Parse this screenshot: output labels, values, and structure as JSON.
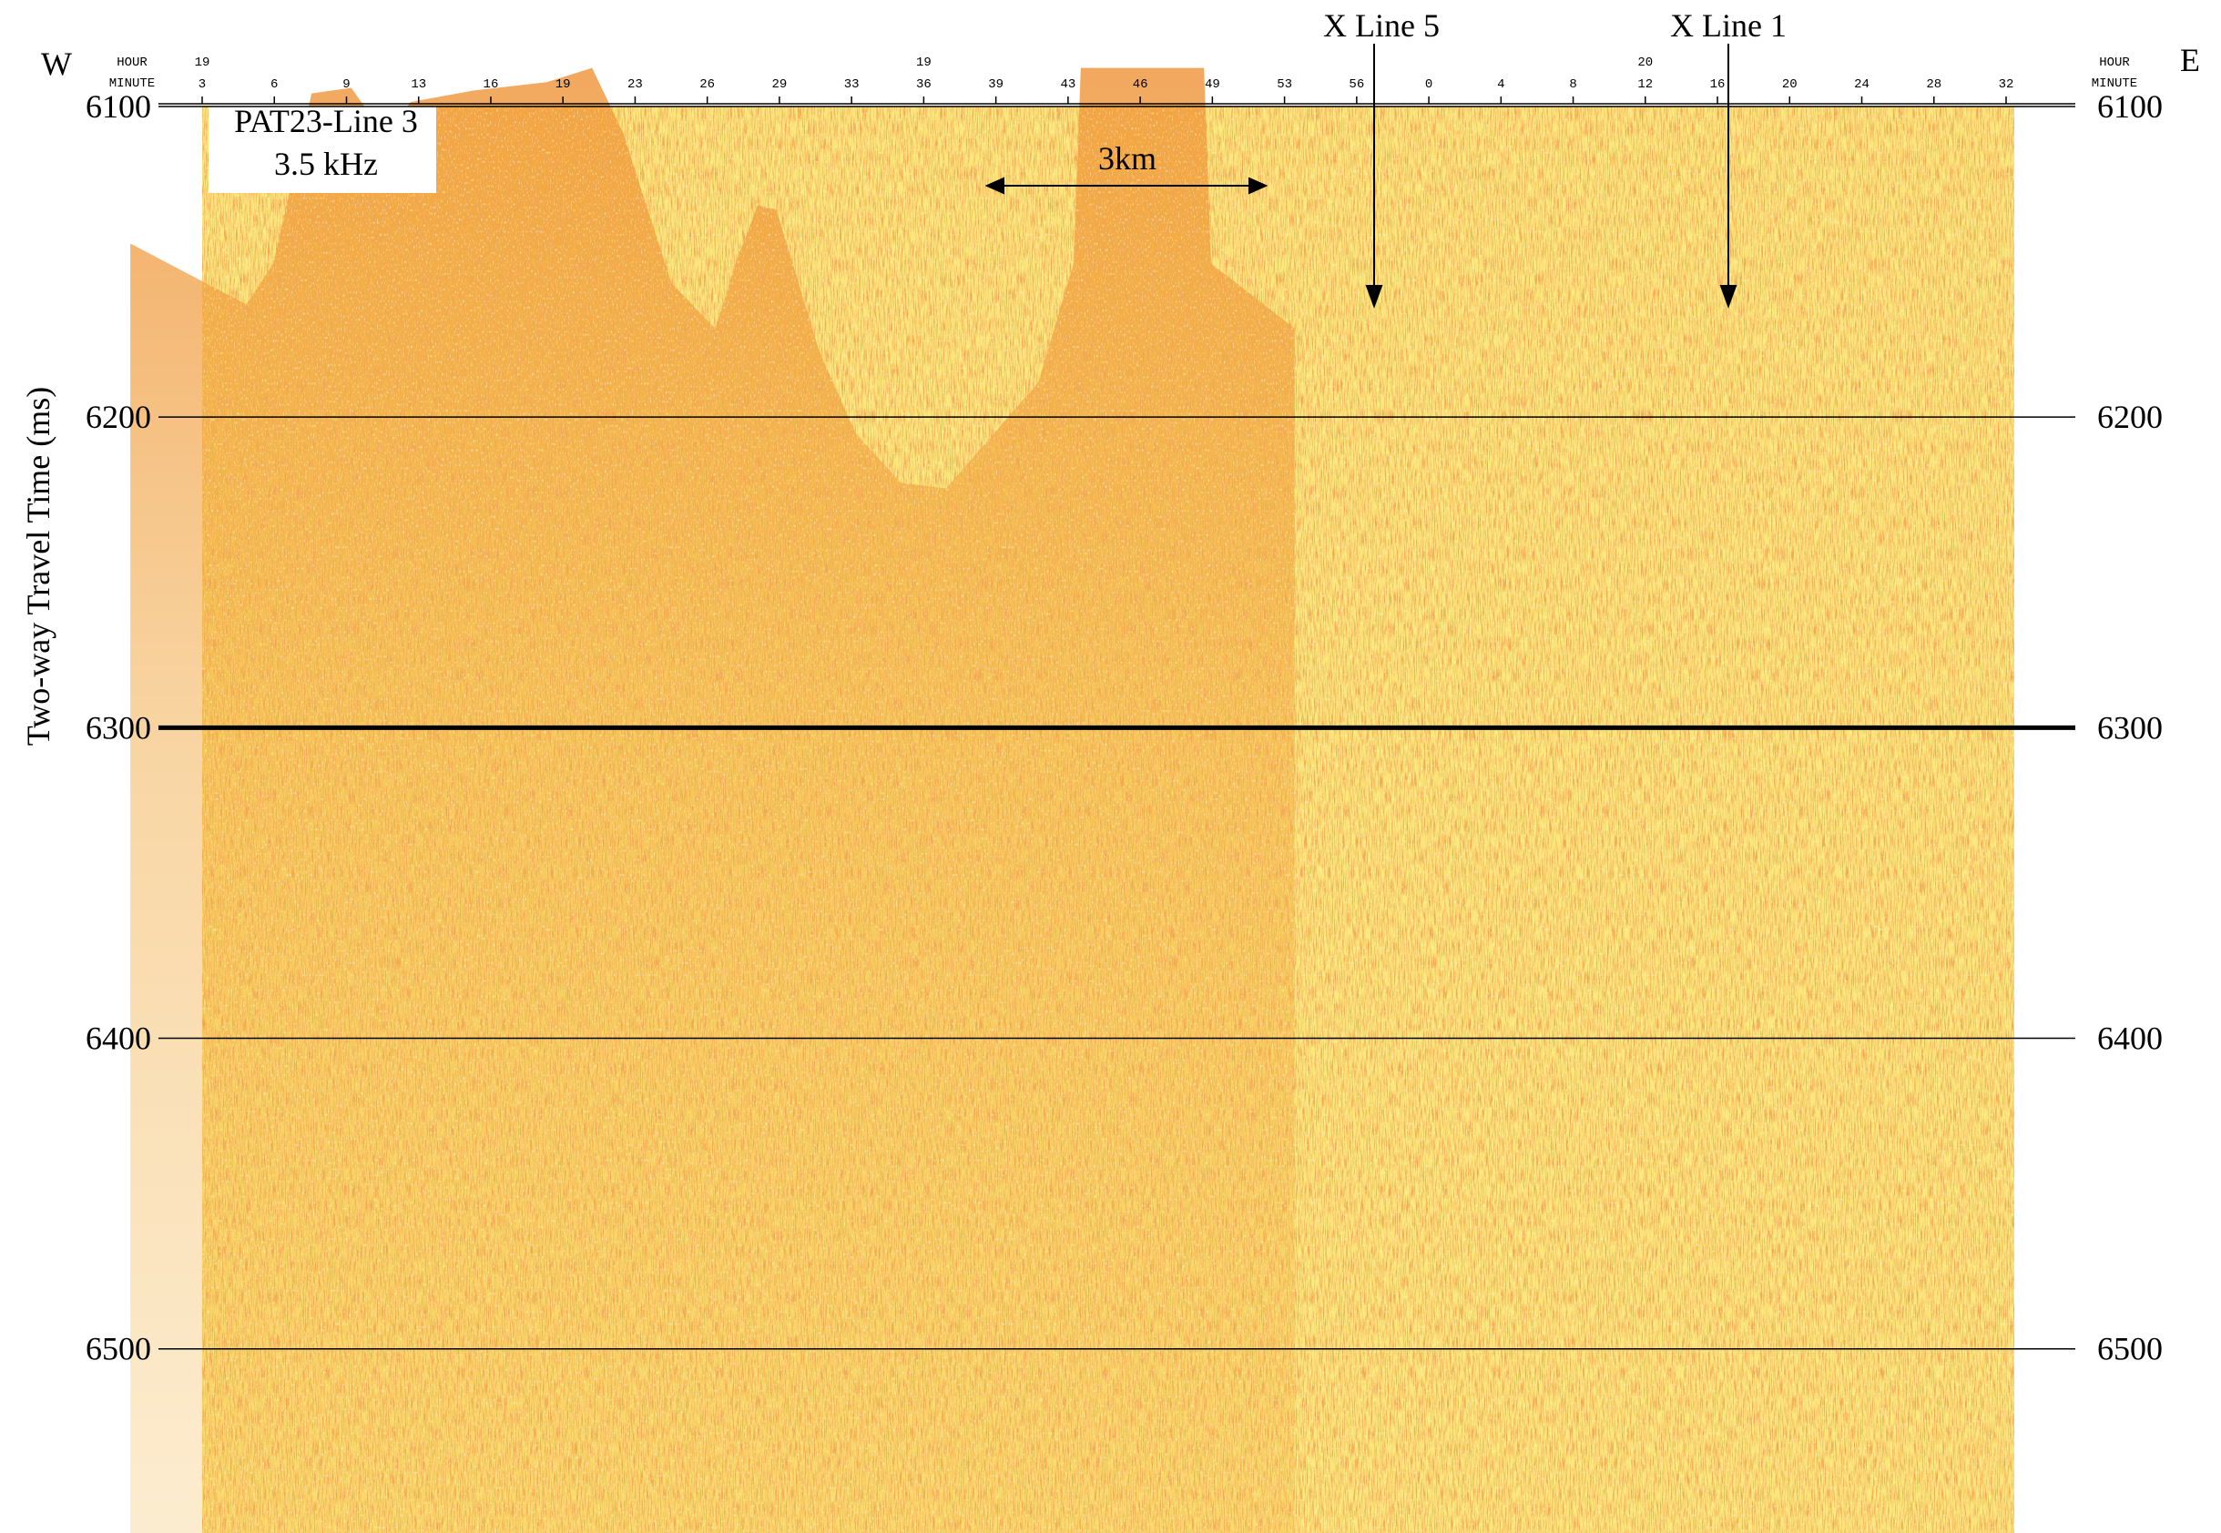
{
  "chart_data": {
    "type": "seismic_profile",
    "y_axis_label": "Two-way Travel Time (ms)",
    "ylim": [
      6100,
      6559
    ],
    "yticks": [
      6100,
      6200,
      6300,
      6400,
      6500
    ],
    "y_inverted": true,
    "grid": true,
    "west_label": "W",
    "east_label": "E",
    "top_axis": {
      "hour_title": "HOUR",
      "minute_title": "MINUTE",
      "hour_labels": [
        "19",
        null,
        null,
        null,
        null,
        null,
        null,
        null,
        null,
        null,
        "19",
        null,
        null,
        null,
        null,
        null,
        null,
        null,
        null,
        null,
        "20",
        null,
        null,
        null,
        null,
        null
      ],
      "minute_labels": [
        "3",
        "6",
        "9",
        "13",
        "16",
        "19",
        "23",
        "26",
        "29",
        "33",
        "36",
        "39",
        "43",
        "46",
        "49",
        "53",
        "56",
        "0",
        "4",
        "8",
        "12",
        "16",
        "20",
        "24",
        "28",
        "32"
      ]
    },
    "annotations": {
      "profile_name": "PAT23-Line 3",
      "frequency": "3.5 kHz",
      "scale_bar": "3km",
      "crossing_lines": [
        "X Line 5",
        "X Line 1"
      ]
    }
  }
}
